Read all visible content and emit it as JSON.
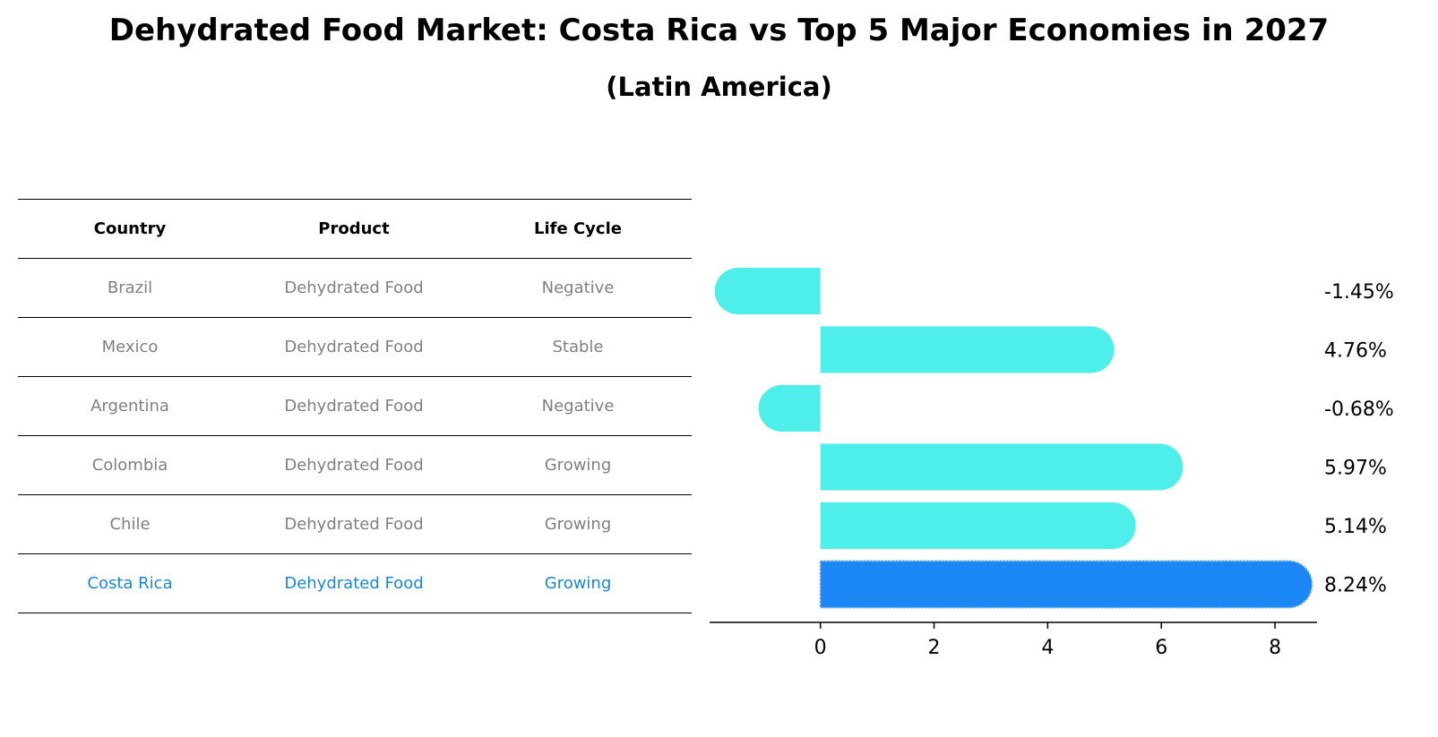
{
  "title": "Dehydrated Food Market: Costa Rica vs Top 5 Major Economies in 2027",
  "subtitle": "(Latin America)",
  "table": {
    "headers": [
      "Country",
      "Product",
      "Life Cycle"
    ],
    "rows": [
      {
        "country": "Brazil",
        "product": "Dehydrated Food",
        "life_cycle": "Negative"
      },
      {
        "country": "Mexico",
        "product": "Dehydrated Food",
        "life_cycle": "Stable"
      },
      {
        "country": "Argentina",
        "product": "Dehydrated Food",
        "life_cycle": "Negative"
      },
      {
        "country": "Colombia",
        "product": "Dehydrated Food",
        "life_cycle": "Growing"
      },
      {
        "country": "Chile",
        "product": "Dehydrated Food",
        "life_cycle": "Growing"
      },
      {
        "country": "Costa Rica",
        "product": "Dehydrated Food",
        "life_cycle": "Growing"
      }
    ]
  },
  "chart_data": {
    "type": "bar",
    "orientation": "horizontal",
    "categories": [
      "Brazil",
      "Mexico",
      "Argentina",
      "Colombia",
      "Chile",
      "Costa Rica"
    ],
    "values": [
      -1.45,
      4.76,
      -0.68,
      5.97,
      5.14,
      8.24
    ],
    "value_labels": [
      "-1.45%",
      "4.76%",
      "-0.68%",
      "5.97%",
      "5.14%",
      "8.24%"
    ],
    "highlight": "Costa Rica",
    "xlim": [
      -1.95,
      8.74
    ],
    "xticks": [
      0,
      2,
      4,
      6,
      8
    ],
    "colors": {
      "default": "#4eeeeb",
      "highlight": "#1a87f5"
    }
  },
  "colors": {
    "highlight_text": "#1a87d1",
    "muted_text": "#808080"
  }
}
